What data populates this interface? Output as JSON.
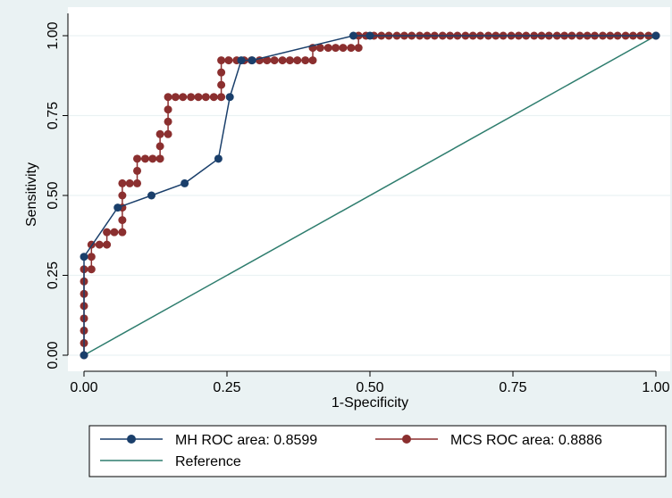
{
  "chart_data": {
    "type": "line",
    "title": "",
    "xlabel": "1-Specificity",
    "ylabel": "Sensitivity",
    "xlim": [
      0,
      1
    ],
    "ylim": [
      0,
      1
    ],
    "x_ticks": [
      "0.00",
      "0.25",
      "0.50",
      "0.75",
      "1.00"
    ],
    "y_ticks": [
      "0.00",
      "0.25",
      "0.50",
      "0.75",
      "1.00"
    ],
    "grid": "horizontal",
    "legend_position": "bottom",
    "series": [
      {
        "name": "MH ROC area: 0.8599",
        "color": "#1a3f6b",
        "marker": "circle",
        "x": [
          0.0,
          0.0,
          0.059,
          0.118,
          0.176,
          0.235,
          0.255,
          0.275,
          0.294,
          0.471,
          0.5,
          1.0
        ],
        "y": [
          0.0,
          0.308,
          0.462,
          0.5,
          0.538,
          0.615,
          0.808,
          0.923,
          0.923,
          1.0,
          1.0,
          1.0
        ]
      },
      {
        "name": "MCS ROC area: 0.8886",
        "color": "#8b2f2f",
        "marker": "circle",
        "x": [
          0.0,
          0.0,
          0.0,
          0.0,
          0.0,
          0.0,
          0.0,
          0.0,
          0.013,
          0.013,
          0.013,
          0.027,
          0.04,
          0.04,
          0.053,
          0.067,
          0.067,
          0.067,
          0.067,
          0.067,
          0.08,
          0.093,
          0.093,
          0.093,
          0.107,
          0.12,
          0.133,
          0.133,
          0.133,
          0.147,
          0.147,
          0.147,
          0.147,
          0.16,
          0.173,
          0.187,
          0.2,
          0.213,
          0.227,
          0.24,
          0.24,
          0.24,
          0.24,
          0.253,
          0.267,
          0.28,
          0.293,
          0.307,
          0.32,
          0.333,
          0.347,
          0.36,
          0.373,
          0.387,
          0.4,
          0.4,
          0.413,
          0.427,
          0.44,
          0.453,
          0.467,
          0.48,
          0.48,
          0.493,
          0.507,
          0.52,
          0.533,
          0.547,
          0.56,
          0.573,
          0.587,
          0.6,
          0.613,
          0.627,
          0.64,
          0.653,
          0.667,
          0.68,
          0.693,
          0.707,
          0.72,
          0.733,
          0.747,
          0.76,
          0.773,
          0.787,
          0.8,
          0.813,
          0.827,
          0.84,
          0.853,
          0.867,
          0.88,
          0.893,
          0.907,
          0.92,
          0.933,
          0.947,
          0.96,
          0.973,
          0.987,
          1.0
        ],
        "y": [
          0.0,
          0.038,
          0.077,
          0.115,
          0.154,
          0.192,
          0.231,
          0.269,
          0.269,
          0.308,
          0.346,
          0.346,
          0.346,
          0.385,
          0.385,
          0.385,
          0.423,
          0.462,
          0.5,
          0.538,
          0.538,
          0.538,
          0.577,
          0.615,
          0.615,
          0.615,
          0.615,
          0.654,
          0.692,
          0.692,
          0.731,
          0.769,
          0.808,
          0.808,
          0.808,
          0.808,
          0.808,
          0.808,
          0.808,
          0.808,
          0.846,
          0.885,
          0.923,
          0.923,
          0.923,
          0.923,
          0.923,
          0.923,
          0.923,
          0.923,
          0.923,
          0.923,
          0.923,
          0.923,
          0.923,
          0.962,
          0.962,
          0.962,
          0.962,
          0.962,
          0.962,
          0.962,
          1.0,
          1.0,
          1.0,
          1.0,
          1.0,
          1.0,
          1.0,
          1.0,
          1.0,
          1.0,
          1.0,
          1.0,
          1.0,
          1.0,
          1.0,
          1.0,
          1.0,
          1.0,
          1.0,
          1.0,
          1.0,
          1.0,
          1.0,
          1.0,
          1.0,
          1.0,
          1.0,
          1.0,
          1.0,
          1.0,
          1.0,
          1.0,
          1.0,
          1.0,
          1.0,
          1.0,
          1.0,
          1.0,
          1.0,
          1.0
        ]
      },
      {
        "name": "Reference",
        "color": "#2e7d6e",
        "marker": "none",
        "x": [
          0,
          1
        ],
        "y": [
          0,
          1
        ]
      }
    ]
  }
}
